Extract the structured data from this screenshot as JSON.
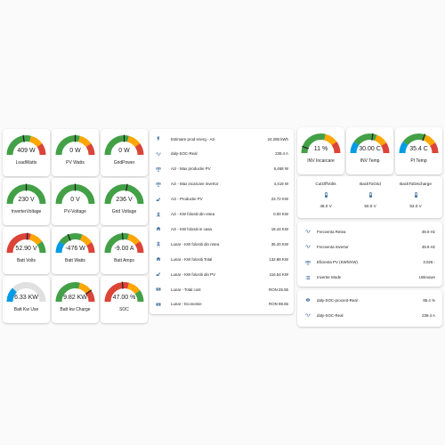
{
  "colors": {
    "accent": "#44739e",
    "green": "#43a047",
    "yellow": "#ffa600",
    "red": "#db4437",
    "blue": "#039be5",
    "track": "#e0e0e0",
    "needle": "#212121"
  },
  "left_gauges": [
    {
      "value": "409 W",
      "name": "LoadWatts",
      "level": 0.45,
      "segments": "gyr",
      "needle": true
    },
    {
      "value": "0 W",
      "name": "PV Watts",
      "level": 0.5,
      "segments": "gyr",
      "needle": true
    },
    {
      "value": "0 W",
      "name": "GridPower",
      "level": 0.5,
      "segments": "gyr",
      "needle": true
    },
    {
      "value": "230 V",
      "name": "InverterVoltage",
      "level": 0.5,
      "segments": "g",
      "needle": true
    },
    {
      "value": "0 V",
      "name": "PV-Voltage",
      "level": 0.5,
      "segments": "g",
      "needle": true
    },
    {
      "value": "236 V",
      "name": "Grid Voltage",
      "level": 0.55,
      "segments": "g",
      "needle": true
    },
    {
      "value": "52.90 V",
      "name": "Batt Volts",
      "level": 0.52,
      "segments": "ryg",
      "needle": true
    },
    {
      "value": "-476 W",
      "name": "Batt Watts",
      "level": 0.38,
      "segments": "bgyr",
      "needle": true
    },
    {
      "value": "-9.00 A",
      "name": "Batt Amps",
      "level": 0.47,
      "segments": "gyr",
      "needle": true
    },
    {
      "value": "6.33 KW",
      "name": "Batt Kw Use",
      "level": 0.25,
      "segments": "b",
      "needle": false
    },
    {
      "value": "9.82 KW",
      "name": "Batt kw Charge",
      "level": 0.8,
      "segments": "gyr",
      "needle": true
    },
    {
      "value": "47.00 %",
      "name": "SOC",
      "level": 0.47,
      "segments": "ryg",
      "needle": true
    }
  ],
  "middle_list": [
    {
      "icon": "flash-icon",
      "label": "Estimare prod energ - Azi",
      "value": "24.288 kWh"
    },
    {
      "icon": "sine-wave-icon",
      "label": "daly-SOC-Real",
      "value": "239.4 A"
    },
    {
      "icon": "solar-panel-icon",
      "label": "Azi - Max productie PV",
      "value": "6,468 W"
    },
    {
      "icon": "solar-panel-icon",
      "label": "Azi - Max incarcare invertor",
      "value": "4,419 W"
    },
    {
      "icon": "solar-power-icon",
      "label": "Azi - Productie PV",
      "value": "23.72 KW"
    },
    {
      "icon": "pylon-icon",
      "label": "Azi - KW folositi din retea",
      "value": "0.00 KW"
    },
    {
      "icon": "home-icon",
      "label": "Azi - KW folositi in casa",
      "value": "18.44 KW"
    },
    {
      "icon": "pylon-icon",
      "label": "Lunar - KW folositi din retea",
      "value": "35.20 KW"
    },
    {
      "icon": "home-icon",
      "label": "Lunar - KW folositi Total",
      "value": "132.88 KW"
    },
    {
      "icon": "solar-power-icon",
      "label": "Lunar - KW folositi din PV",
      "value": "116.54 KW"
    },
    {
      "icon": "cash-icon",
      "label": "Lunar - Total cost",
      "value": "RON 25.55"
    },
    {
      "icon": "cash-icon",
      "label": "Lunar - Economie",
      "value": "RON 98.65"
    }
  ],
  "right_gauges": [
    {
      "value": "11 %",
      "name": "INV Incarcare",
      "level": 0.11,
      "segments": "gyr",
      "needle": true
    },
    {
      "value": "30.00 C",
      "name": "INV Temp",
      "level": 0.55,
      "segments": "bgyr",
      "needle": true
    },
    {
      "value": "35.4 C",
      "name": "PI Temp",
      "level": 0.6,
      "segments": "bgyr",
      "needle": true
    }
  ],
  "battery_thresholds": [
    {
      "title": "CutOffVolts",
      "value": "48.0 V"
    },
    {
      "title": "BackToGrid",
      "value": "50.0 V"
    },
    {
      "title": "BackToDischarge",
      "value": "53.0 V"
    }
  ],
  "inverter_list": [
    {
      "icon": "sine-wave-icon",
      "label": "Frecventa Retea",
      "value": "49.9 Hz"
    },
    {
      "icon": "sine-wave-icon",
      "label": "Frecventa Invertor",
      "value": "49.9 Hz"
    },
    {
      "icon": "solar-panel-icon",
      "label": "Eficienta PV (KWh/KW)",
      "value": "3.026 -"
    },
    {
      "icon": "list-icon",
      "label": "Inverter Mode",
      "value": "Unknown"
    }
  ],
  "soc_list": [
    {
      "icon": "eye-icon",
      "label": "daly-SOC-procent-Real",
      "value": "85.4 %"
    },
    {
      "icon": "sine-wave-icon",
      "label": "daly-SOC-Real",
      "value": "239.4 A"
    }
  ]
}
